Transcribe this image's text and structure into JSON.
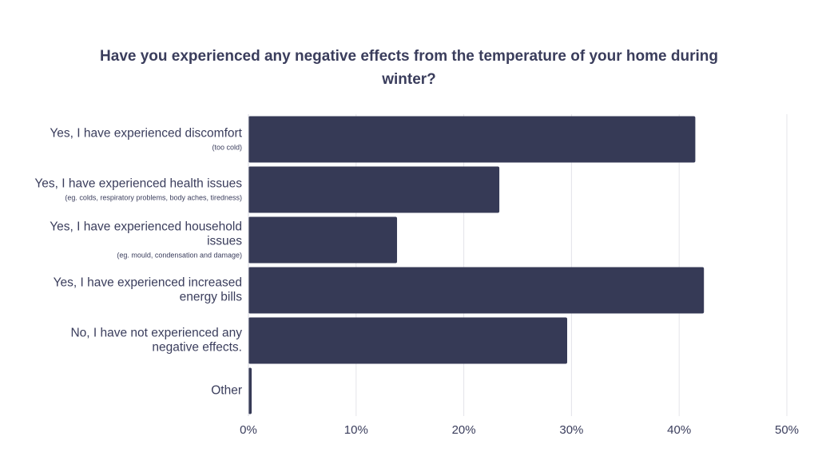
{
  "chart_data": {
    "type": "bar",
    "orientation": "horizontal",
    "title": "Have you experienced any negative effects from the temperature of your home during winter?",
    "categories": [
      {
        "lines": [
          "Yes, I have experienced discomfort"
        ],
        "note": "(too cold)",
        "value": 41.5
      },
      {
        "lines": [
          "Yes, I have experienced health issues"
        ],
        "note": "(eg. colds, respiratory problems, body aches, tiredness)",
        "value": 23.3
      },
      {
        "lines": [
          "Yes, I have experienced household",
          "issues"
        ],
        "note": "(eg. mould, condensation and damage)",
        "value": 13.8
      },
      {
        "lines": [
          "Yes, I have experienced increased",
          "energy bills"
        ],
        "note": "",
        "value": 42.3
      },
      {
        "lines": [
          "No, I have not experienced any",
          "negative effects."
        ],
        "note": "",
        "value": 29.6
      },
      {
        "lines": [
          "Other"
        ],
        "note": "",
        "value": 0.3
      }
    ],
    "xlim": [
      0,
      50
    ],
    "x_ticks": [
      0,
      10,
      20,
      30,
      40,
      50
    ],
    "x_tick_labels": [
      "0%",
      "10%",
      "20%",
      "30%",
      "40%",
      "50%"
    ],
    "xlabel": "",
    "ylabel": "",
    "grid": "vertical",
    "legend": "none",
    "bar_color": "#363a56",
    "grid_color": "#e4e4ea",
    "text_color": "#3a3d5c"
  }
}
